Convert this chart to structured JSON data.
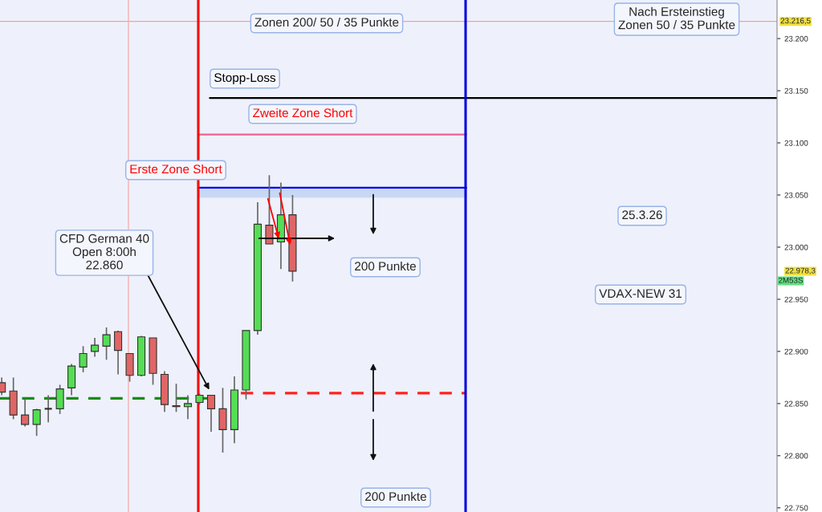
{
  "chart_data": {
    "type": "candlestick",
    "categories": [
      null,
      null,
      null,
      null,
      null,
      null,
      null,
      null,
      null,
      null,
      null,
      null,
      null,
      null,
      null,
      null,
      null,
      null,
      null,
      null,
      null,
      null,
      null,
      null,
      null,
      null,
      null,
      null,
      null,
      null,
      null,
      null,
      null,
      null,
      null,
      null,
      null,
      null,
      null,
      null,
      null,
      null,
      null,
      null,
      null,
      null,
      null,
      null,
      null,
      null,
      null,
      null,
      null,
      null,
      null,
      null,
      null,
      null,
      null,
      null,
      null,
      null,
      null,
      null,
      null,
      null,
      null
    ],
    "ohlc": [
      [
        22870,
        22875,
        22858,
        22861
      ],
      [
        22862,
        22875,
        22835,
        22839
      ],
      [
        22839,
        22854,
        22828,
        22830
      ],
      [
        22830,
        22845,
        22819,
        22844
      ],
      [
        22845,
        22858,
        22832,
        22845
      ],
      [
        22845,
        22868,
        22840,
        22864
      ],
      [
        22865,
        22888,
        22858,
        22886
      ],
      [
        22885,
        22905,
        22880,
        22898
      ],
      [
        22900,
        22913,
        22895,
        22906
      ],
      [
        22905,
        22923,
        22892,
        22916
      ],
      [
        22919,
        22920,
        22878,
        22901
      ],
      [
        22898,
        22898,
        22871,
        22877
      ],
      [
        22877,
        22915,
        22876,
        22914
      ],
      [
        22913,
        22913,
        22868,
        22879
      ],
      [
        22878,
        22881,
        22842,
        22849
      ],
      [
        22848,
        22869,
        22842,
        22847
      ],
      [
        22847,
        22858,
        22835,
        22850
      ],
      [
        22851,
        22860,
        22849,
        22858
      ],
      [
        22858,
        22858,
        22823,
        22845
      ],
      [
        22845,
        22865,
        22803,
        22825
      ],
      [
        22825,
        22876,
        22812,
        22863
      ],
      [
        22863,
        22920,
        22854,
        22920
      ],
      [
        22920,
        23043,
        22916,
        23022
      ],
      [
        23021,
        23069,
        23003,
        23003
      ],
      [
        23005,
        23062,
        22979,
        23031
      ],
      [
        23031,
        23050,
        22967,
        22977
      ],
      null,
      null,
      null,
      null,
      null,
      null,
      null,
      null,
      null,
      null,
      null,
      null,
      null,
      null,
      null,
      null,
      null,
      null,
      null,
      null,
      null,
      null,
      null,
      null,
      null,
      null,
      null,
      null,
      null,
      null,
      null,
      null,
      null,
      null,
      null,
      null,
      null,
      null,
      null,
      null,
      null
    ],
    "colors": [
      "#e06666",
      "#e06666",
      "#e06666",
      "#55dd55",
      "#333333",
      "#55dd55",
      "#55dd55",
      "#55dd55",
      "#55dd55",
      "#55dd55",
      "#e06666",
      "#e06666",
      "#55dd55",
      "#e06666",
      "#e06666",
      "#8b2020",
      "#55dd55",
      "#55dd55",
      "#e06666",
      "#e06666",
      "#55dd55",
      "#55dd55",
      "#55dd55",
      "#e06666",
      "#55dd55",
      "#e06666",
      null,
      null,
      null,
      null,
      null,
      null,
      null,
      null,
      null,
      null,
      null,
      null,
      null,
      null,
      null,
      null,
      null,
      null,
      null,
      null,
      null,
      null,
      null,
      null,
      null,
      null,
      null,
      null,
      null,
      null,
      null,
      null,
      null,
      null,
      null,
      null,
      null,
      null,
      null,
      null,
      null
    ],
    "ylim": [
      22746,
      23237
    ],
    "yticks": [
      {
        "value": 22750,
        "label": "22.750"
      },
      {
        "value": 22800,
        "label": "22.800"
      },
      {
        "value": 22850,
        "label": "22.850"
      },
      {
        "value": 22900,
        "label": "22.900"
      },
      {
        "value": 22950,
        "label": "22.950"
      },
      {
        "value": 23000,
        "label": "23.000"
      },
      {
        "value": 23050,
        "label": "23.050"
      },
      {
        "value": 23100,
        "label": "23.100"
      },
      {
        "value": 23150,
        "label": "23.150"
      },
      {
        "value": 23200,
        "label": "23.200"
      }
    ],
    "tick_labels": "y",
    "grid": false,
    "ref_lines": [
      {
        "axis": "y",
        "value": 23216.5,
        "color": "#f4a0a0",
        "label": "23.216,5"
      },
      {
        "axis": "y",
        "value": 23143,
        "color": "#000000",
        "label": "Stopp-Loss"
      },
      {
        "axis": "y",
        "value": 23108,
        "color": "#f06090",
        "label": "Zweite Zone Short"
      },
      {
        "axis": "y",
        "value": 23057,
        "color": "#0000ee",
        "label": "Erste Zone Short"
      },
      {
        "axis": "y",
        "value": 22860,
        "color": "#ff2020",
        "line_style": "dashed"
      },
      {
        "axis": "y",
        "value": 22855,
        "color": "#1a8a1a",
        "line_style": "dashed"
      }
    ],
    "bands": [
      {
        "axis": "y",
        "from": 23048,
        "to": 23057,
        "color": "#c8d8f4"
      }
    ],
    "annotations": [
      "Zonen 200/ 50 / 35 Punkte",
      "Nach Ersteinstieg\nZonen 50 / 35 Punkte",
      "CFD German 40\nOpen 8:00h\n22.860",
      "25.3.26",
      "VDAX-NEW 31",
      "200 Punkte",
      "200 Punkte",
      "22.978,3",
      "2M53S"
    ]
  }
}
